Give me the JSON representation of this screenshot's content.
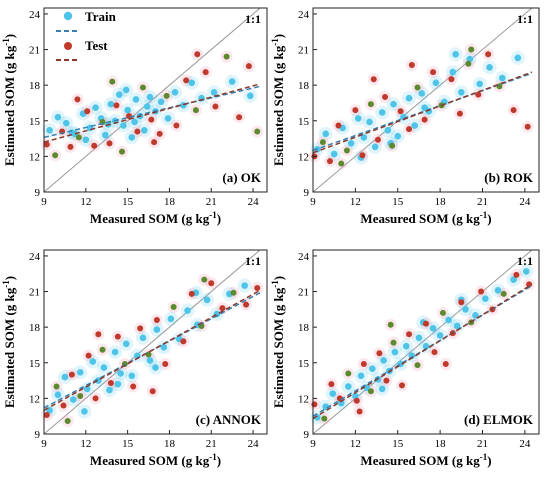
{
  "colors": {
    "train": "#4ec4e8",
    "test": "#c0392b",
    "test_alt": "#5d8a2f",
    "train_fit": "#3a7fb0",
    "test_fit": "#8b3a2a",
    "one_to_one": "#999999"
  },
  "legend": {
    "train": "Train",
    "test": "Test"
  },
  "chart_data": [
    {
      "type": "scatter",
      "panel_label": "(a) OK",
      "reference_label": "1:1",
      "xlabel": "Measured SOM (g kg",
      "ylabel": "Estimated SOM (g kg",
      "unit_superscript": "-1",
      "xlim": [
        9,
        25
      ],
      "ylim": [
        9,
        24.5
      ],
      "xticks": [
        9,
        12,
        15,
        18,
        21,
        24
      ],
      "yticks": [
        9,
        12,
        15,
        18,
        21,
        24
      ],
      "fit_train": [
        [
          9,
          13.6
        ],
        [
          24.5,
          17.9
        ]
      ],
      "fit_test": [
        [
          9,
          13.2
        ],
        [
          24.5,
          18.1
        ]
      ],
      "train": [
        [
          9.4,
          14.2
        ],
        [
          10.0,
          15.3
        ],
        [
          10.6,
          14.8
        ],
        [
          11.2,
          13.9
        ],
        [
          11.8,
          15.6
        ],
        [
          12.3,
          14.4
        ],
        [
          12.7,
          16.1
        ],
        [
          13.1,
          15.2
        ],
        [
          13.4,
          13.8
        ],
        [
          13.8,
          16.4
        ],
        [
          14.1,
          15.0
        ],
        [
          14.4,
          17.2
        ],
        [
          14.7,
          14.6
        ],
        [
          15.0,
          15.9
        ],
        [
          15.3,
          13.6
        ],
        [
          15.6,
          16.8
        ],
        [
          15.9,
          15.4
        ],
        [
          16.2,
          14.2
        ],
        [
          16.6,
          17.0
        ],
        [
          17.0,
          15.8
        ],
        [
          17.4,
          16.6
        ],
        [
          17.9,
          15.2
        ],
        [
          18.4,
          17.4
        ],
        [
          19.0,
          16.3
        ],
        [
          19.6,
          18.2
        ],
        [
          20.3,
          16.9
        ],
        [
          21.2,
          17.4
        ],
        [
          22.5,
          18.3
        ],
        [
          23.8,
          17.1
        ],
        [
          12.0,
          13.4
        ],
        [
          13.6,
          14.7
        ],
        [
          14.9,
          17.6
        ],
        [
          16.4,
          16.2
        ],
        [
          11.0,
          14.0
        ],
        [
          15.5,
          14.9
        ]
      ],
      "test": [
        [
          9.2,
          13.0
        ],
        [
          9.8,
          12.1
        ],
        [
          10.3,
          14.1
        ],
        [
          10.9,
          12.8
        ],
        [
          11.5,
          13.6
        ],
        [
          12.1,
          15.8
        ],
        [
          12.6,
          12.9
        ],
        [
          13.2,
          14.9
        ],
        [
          13.7,
          13.1
        ],
        [
          14.2,
          16.3
        ],
        [
          14.6,
          12.4
        ],
        [
          15.1,
          15.4
        ],
        [
          15.7,
          14.1
        ],
        [
          16.1,
          17.8
        ],
        [
          16.7,
          15.1
        ],
        [
          17.3,
          13.9
        ],
        [
          17.8,
          17.1
        ],
        [
          18.5,
          14.6
        ],
        [
          19.2,
          18.4
        ],
        [
          19.9,
          15.9
        ],
        [
          20.6,
          19.1
        ],
        [
          21.3,
          16.2
        ],
        [
          22.1,
          20.4
        ],
        [
          23.0,
          15.3
        ],
        [
          23.7,
          19.6
        ],
        [
          24.3,
          14.1
        ],
        [
          20.0,
          20.6
        ],
        [
          11.4,
          16.8
        ],
        [
          13.9,
          18.3
        ],
        [
          16.9,
          13.2
        ]
      ]
    },
    {
      "type": "scatter",
      "panel_label": "(b) ROK",
      "reference_label": "1:1",
      "xlabel": "Measured SOM (g kg",
      "ylabel": "Estimated SOM (g kg",
      "unit_superscript": "-1",
      "xlim": [
        9,
        25
      ],
      "ylim": [
        9,
        24.5
      ],
      "xticks": [
        9,
        12,
        15,
        18,
        21,
        24
      ],
      "yticks": [
        9,
        12,
        15,
        18,
        21,
        24
      ],
      "fit_train": [
        [
          9,
          12.5
        ],
        [
          24.5,
          19.0
        ]
      ],
      "fit_test": [
        [
          9,
          12.3
        ],
        [
          24.5,
          19.1
        ]
      ],
      "train": [
        [
          9.3,
          12.6
        ],
        [
          9.9,
          13.9
        ],
        [
          10.5,
          12.2
        ],
        [
          11.1,
          14.4
        ],
        [
          11.7,
          13.1
        ],
        [
          12.2,
          15.2
        ],
        [
          12.6,
          13.6
        ],
        [
          13.0,
          14.9
        ],
        [
          13.4,
          12.8
        ],
        [
          13.9,
          15.7
        ],
        [
          14.3,
          14.2
        ],
        [
          14.7,
          16.4
        ],
        [
          15.0,
          13.7
        ],
        [
          15.4,
          15.3
        ],
        [
          15.8,
          16.9
        ],
        [
          16.2,
          14.6
        ],
        [
          16.7,
          17.3
        ],
        [
          17.2,
          15.8
        ],
        [
          17.7,
          18.2
        ],
        [
          18.3,
          16.6
        ],
        [
          18.9,
          19.1
        ],
        [
          19.5,
          17.4
        ],
        [
          20.1,
          20.2
        ],
        [
          20.8,
          18.1
        ],
        [
          21.5,
          19.5
        ],
        [
          22.4,
          18.6
        ],
        [
          23.5,
          20.3
        ],
        [
          12.4,
          11.9
        ],
        [
          14.5,
          13.1
        ],
        [
          16.9,
          16.1
        ],
        [
          19.1,
          20.6
        ]
      ],
      "test": [
        [
          9.1,
          12.0
        ],
        [
          9.7,
          13.2
        ],
        [
          10.2,
          11.6
        ],
        [
          10.8,
          14.6
        ],
        [
          11.4,
          12.5
        ],
        [
          12.0,
          15.9
        ],
        [
          12.5,
          12.1
        ],
        [
          13.1,
          16.4
        ],
        [
          13.6,
          13.4
        ],
        [
          14.1,
          17.0
        ],
        [
          14.6,
          12.9
        ],
        [
          15.2,
          15.8
        ],
        [
          15.8,
          14.3
        ],
        [
          16.4,
          17.8
        ],
        [
          16.9,
          15.1
        ],
        [
          17.5,
          19.1
        ],
        [
          18.1,
          16.3
        ],
        [
          18.8,
          18.5
        ],
        [
          19.4,
          15.6
        ],
        [
          20.0,
          19.8
        ],
        [
          20.7,
          17.2
        ],
        [
          21.4,
          20.6
        ],
        [
          22.2,
          17.9
        ],
        [
          23.2,
          15.9
        ],
        [
          24.2,
          14.5
        ],
        [
          20.2,
          21.0
        ],
        [
          13.3,
          18.5
        ],
        [
          16.0,
          19.7
        ],
        [
          11.0,
          11.4
        ]
      ]
    },
    {
      "type": "scatter",
      "panel_label": "(c) ANNOK",
      "reference_label": "1:1",
      "xlabel": "Measured SOM (g kg",
      "ylabel": "Estimated SOM (g kg",
      "unit_superscript": "-1",
      "xlim": [
        9,
        25
      ],
      "ylim": [
        9,
        24.5
      ],
      "xticks": [
        9,
        12,
        15,
        18,
        21,
        24
      ],
      "yticks": [
        9,
        12,
        15,
        18,
        21,
        24
      ],
      "fit_train": [
        [
          9,
          11.2
        ],
        [
          24.5,
          20.9
        ]
      ],
      "fit_test": [
        [
          9,
          11.0
        ],
        [
          24.5,
          21.1
        ]
      ],
      "train": [
        [
          9.4,
          11.0
        ],
        [
          10.0,
          12.3
        ],
        [
          10.5,
          13.8
        ],
        [
          11.1,
          11.9
        ],
        [
          11.6,
          14.2
        ],
        [
          12.1,
          12.8
        ],
        [
          12.5,
          15.1
        ],
        [
          12.9,
          13.5
        ],
        [
          13.3,
          14.6
        ],
        [
          13.7,
          12.7
        ],
        [
          14.1,
          15.9
        ],
        [
          14.5,
          14.1
        ],
        [
          14.9,
          16.6
        ],
        [
          15.3,
          13.9
        ],
        [
          15.7,
          15.6
        ],
        [
          16.1,
          17.1
        ],
        [
          16.6,
          15.2
        ],
        [
          17.1,
          17.8
        ],
        [
          17.6,
          16.3
        ],
        [
          18.1,
          18.7
        ],
        [
          18.7,
          17.0
        ],
        [
          19.3,
          19.4
        ],
        [
          20.0,
          18.2
        ],
        [
          20.7,
          20.3
        ],
        [
          21.4,
          19.1
        ],
        [
          22.3,
          20.8
        ],
        [
          23.4,
          21.5
        ],
        [
          11.9,
          10.9
        ],
        [
          14.3,
          13.2
        ],
        [
          17.0,
          14.6
        ],
        [
          19.9,
          20.9
        ]
      ],
      "test": [
        [
          9.2,
          10.6
        ],
        [
          9.9,
          13.0
        ],
        [
          10.4,
          11.4
        ],
        [
          11.0,
          14.0
        ],
        [
          11.6,
          12.2
        ],
        [
          12.2,
          15.6
        ],
        [
          12.7,
          12.0
        ],
        [
          13.2,
          16.1
        ],
        [
          13.8,
          13.3
        ],
        [
          14.3,
          17.2
        ],
        [
          14.8,
          14.9
        ],
        [
          15.4,
          13.0
        ],
        [
          15.9,
          17.9
        ],
        [
          16.5,
          15.7
        ],
        [
          17.1,
          18.6
        ],
        [
          17.7,
          14.9
        ],
        [
          18.3,
          19.7
        ],
        [
          19.0,
          16.8
        ],
        [
          19.6,
          20.8
        ],
        [
          20.3,
          18.1
        ],
        [
          21.0,
          21.7
        ],
        [
          21.8,
          19.6
        ],
        [
          22.6,
          20.9
        ],
        [
          23.5,
          19.9
        ],
        [
          24.3,
          21.3
        ],
        [
          20.5,
          22.0
        ],
        [
          12.9,
          17.4
        ],
        [
          16.8,
          12.6
        ],
        [
          10.7,
          10.1
        ]
      ]
    },
    {
      "type": "scatter",
      "panel_label": "(d) ELMOK",
      "reference_label": "1:1",
      "xlabel": "Measured SOM (g kg",
      "ylabel": "Estimated SOM (g kg",
      "unit_superscript": "-1",
      "xlim": [
        9,
        25
      ],
      "ylim": [
        9,
        24.5
      ],
      "xticks": [
        9,
        12,
        15,
        18,
        21,
        24
      ],
      "yticks": [
        9,
        12,
        15,
        18,
        21,
        24
      ],
      "fit_train": [
        [
          9,
          10.5
        ],
        [
          24.5,
          21.5
        ]
      ],
      "fit_test": [
        [
          9,
          10.3
        ],
        [
          24.5,
          21.6
        ]
      ],
      "train": [
        [
          9.3,
          10.4
        ],
        [
          9.9,
          11.3
        ],
        [
          10.4,
          12.4
        ],
        [
          11.0,
          11.6
        ],
        [
          11.5,
          13.0
        ],
        [
          12.0,
          12.2
        ],
        [
          12.4,
          13.9
        ],
        [
          12.8,
          12.9
        ],
        [
          13.2,
          14.5
        ],
        [
          13.6,
          13.6
        ],
        [
          14.0,
          15.2
        ],
        [
          14.4,
          14.3
        ],
        [
          14.8,
          15.9
        ],
        [
          15.2,
          14.9
        ],
        [
          15.6,
          16.4
        ],
        [
          16.0,
          15.6
        ],
        [
          16.5,
          17.1
        ],
        [
          17.0,
          16.4
        ],
        [
          17.5,
          17.9
        ],
        [
          18.0,
          17.3
        ],
        [
          18.6,
          18.6
        ],
        [
          19.2,
          18.1
        ],
        [
          19.8,
          19.5
        ],
        [
          20.5,
          19.0
        ],
        [
          21.2,
          20.4
        ],
        [
          22.1,
          21.1
        ],
        [
          23.2,
          22.0
        ],
        [
          24.1,
          22.7
        ],
        [
          13.9,
          12.8
        ],
        [
          16.8,
          18.4
        ],
        [
          19.5,
          20.3
        ]
      ],
      "test": [
        [
          9.1,
          11.5
        ],
        [
          9.8,
          10.3
        ],
        [
          10.3,
          13.2
        ],
        [
          10.9,
          12.0
        ],
        [
          11.5,
          14.1
        ],
        [
          12.1,
          11.8
        ],
        [
          12.6,
          14.9
        ],
        [
          13.1,
          12.6
        ],
        [
          13.7,
          15.8
        ],
        [
          14.2,
          13.5
        ],
        [
          14.7,
          16.7
        ],
        [
          15.3,
          13.1
        ],
        [
          15.8,
          17.4
        ],
        [
          16.4,
          14.8
        ],
        [
          17.0,
          18.3
        ],
        [
          17.6,
          15.9
        ],
        [
          18.2,
          19.2
        ],
        [
          18.9,
          17.5
        ],
        [
          19.5,
          20.1
        ],
        [
          20.2,
          18.4
        ],
        [
          20.9,
          21.0
        ],
        [
          21.7,
          19.5
        ],
        [
          22.5,
          20.8
        ],
        [
          23.4,
          22.4
        ],
        [
          24.3,
          21.6
        ],
        [
          14.5,
          18.2
        ],
        [
          12.3,
          10.9
        ],
        [
          18.4,
          14.9
        ]
      ]
    }
  ]
}
